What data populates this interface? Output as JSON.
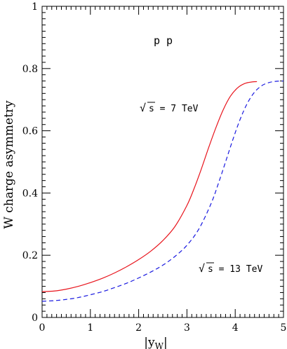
{
  "chart_data": {
    "type": "line",
    "title": "",
    "xlabel": "|y_W|",
    "xlabel_main": "|y",
    "xlabel_sub": "W",
    "xlabel_end": "|",
    "ylabel": "W charge asymmetry",
    "xlim": [
      0,
      5
    ],
    "ylim": [
      0,
      1
    ],
    "grid": false,
    "x_ticks": [
      0,
      1,
      2,
      3,
      4,
      5
    ],
    "y_ticks": [
      0,
      0.2,
      0.4,
      0.6,
      0.8,
      1
    ],
    "x_tick_labels": [
      "0",
      "1",
      "2",
      "3",
      "4",
      "5"
    ],
    "y_tick_labels": [
      "0",
      "0.2",
      "0.4",
      "0.6",
      "0.8",
      "1"
    ],
    "annotations": {
      "process": "p p",
      "sqrt_symbol": "√",
      "energy_7": "s = 7 TeV",
      "energy_13": "s = 13 TeV"
    },
    "series": [
      {
        "energy": "7 TeV",
        "color": "#e8141c",
        "style": "solid",
        "x": [
          0,
          0.25,
          0.5,
          0.75,
          1.0,
          1.25,
          1.5,
          1.75,
          2.0,
          2.25,
          2.5,
          2.75,
          3.0,
          3.15,
          3.3,
          3.45,
          3.6,
          3.75,
          3.9,
          4.05,
          4.2,
          4.35,
          4.45
        ],
        "y": [
          0.083,
          0.085,
          0.091,
          0.1,
          0.112,
          0.126,
          0.143,
          0.163,
          0.186,
          0.213,
          0.247,
          0.292,
          0.36,
          0.415,
          0.478,
          0.546,
          0.61,
          0.667,
          0.711,
          0.738,
          0.752,
          0.757,
          0.758
        ]
      },
      {
        "energy": "13 TeV",
        "color": "#1a1ae0",
        "style": "dashed",
        "x": [
          0,
          0.25,
          0.5,
          0.75,
          1.0,
          1.25,
          1.5,
          1.75,
          2.0,
          2.25,
          2.5,
          2.75,
          3.0,
          3.25,
          3.5,
          3.65,
          3.8,
          3.95,
          4.1,
          4.25,
          4.4,
          4.55,
          4.7,
          4.85,
          5.0
        ],
        "y": [
          0.052,
          0.054,
          0.058,
          0.064,
          0.073,
          0.083,
          0.096,
          0.11,
          0.127,
          0.146,
          0.168,
          0.196,
          0.232,
          0.285,
          0.366,
          0.43,
          0.5,
          0.571,
          0.636,
          0.688,
          0.724,
          0.745,
          0.755,
          0.759,
          0.76
        ]
      }
    ]
  }
}
